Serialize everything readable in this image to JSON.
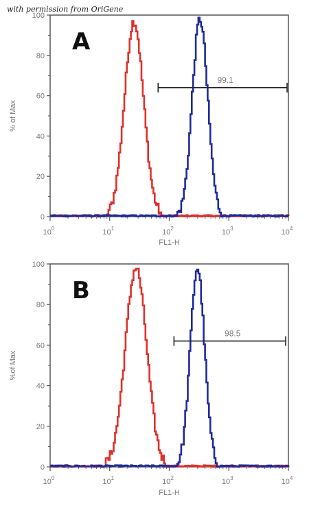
{
  "credit": "with permission from OriGene",
  "chart_data": [
    {
      "type": "line",
      "panel_label": "A",
      "xlabel": "FL1-H",
      "ylabel": "% of Max",
      "xscale": "log",
      "xlim": [
        1,
        10000
      ],
      "ylim": [
        0,
        100
      ],
      "yticks": [
        "0",
        "20",
        "40",
        "60",
        "80",
        "100"
      ],
      "xticks": [
        {
          "base": "10",
          "exp": "0"
        },
        {
          "base": "10",
          "exp": "1"
        },
        {
          "base": "10",
          "exp": "2"
        },
        {
          "base": "10",
          "exp": "3"
        },
        {
          "base": "10",
          "exp": "4"
        }
      ],
      "gate": {
        "label": "99.1",
        "x_start": 65,
        "x_end": 9500,
        "y": 64
      },
      "series": [
        {
          "color": "#e0302a",
          "peak_x": 25,
          "peak_y": 97,
          "log_sigma": 0.16,
          "x": [
            5,
            8,
            12,
            16,
            20,
            25,
            32,
            40,
            55,
            75,
            100
          ],
          "y": [
            0,
            4,
            22,
            60,
            90,
            97,
            82,
            45,
            12,
            3,
            0
          ]
        },
        {
          "color": "#1f2a9a",
          "peak_x": 320,
          "peak_y": 98,
          "log_sigma": 0.13,
          "x": [
            100,
            140,
            180,
            230,
            280,
            320,
            380,
            450,
            600,
            800,
            1200
          ],
          "y": [
            0,
            4,
            18,
            55,
            88,
            98,
            85,
            55,
            15,
            3,
            0
          ]
        }
      ]
    },
    {
      "type": "line",
      "panel_label": "B",
      "xlabel": "FL1-H",
      "ylabel": "%of Max",
      "xscale": "log",
      "xlim": [
        1,
        10000
      ],
      "ylim": [
        0,
        100
      ],
      "yticks": [
        "0",
        "20",
        "40",
        "60",
        "80",
        "100"
      ],
      "xticks": [
        {
          "base": "10",
          "exp": "0"
        },
        {
          "base": "10",
          "exp": "1"
        },
        {
          "base": "10",
          "exp": "2"
        },
        {
          "base": "10",
          "exp": "3"
        },
        {
          "base": "10",
          "exp": "4"
        }
      ],
      "gate": {
        "label": "98.5",
        "x_start": 120,
        "x_end": 9000,
        "y": 62
      },
      "series": [
        {
          "color": "#e0302a",
          "peak_x": 27,
          "peak_y": 98,
          "log_sigma": 0.18,
          "x": [
            6,
            8,
            10,
            13,
            17,
            22,
            27,
            33,
            42,
            60,
            90
          ],
          "y": [
            0,
            8,
            18,
            40,
            70,
            90,
            98,
            80,
            40,
            6,
            0
          ]
        },
        {
          "color": "#1f2a9a",
          "peak_x": 290,
          "peak_y": 98,
          "log_sigma": 0.12,
          "x": [
            110,
            150,
            190,
            230,
            260,
            290,
            330,
            400,
            520,
            700,
            1000
          ],
          "y": [
            0,
            5,
            18,
            50,
            85,
            98,
            88,
            55,
            15,
            3,
            0
          ]
        }
      ]
    }
  ]
}
